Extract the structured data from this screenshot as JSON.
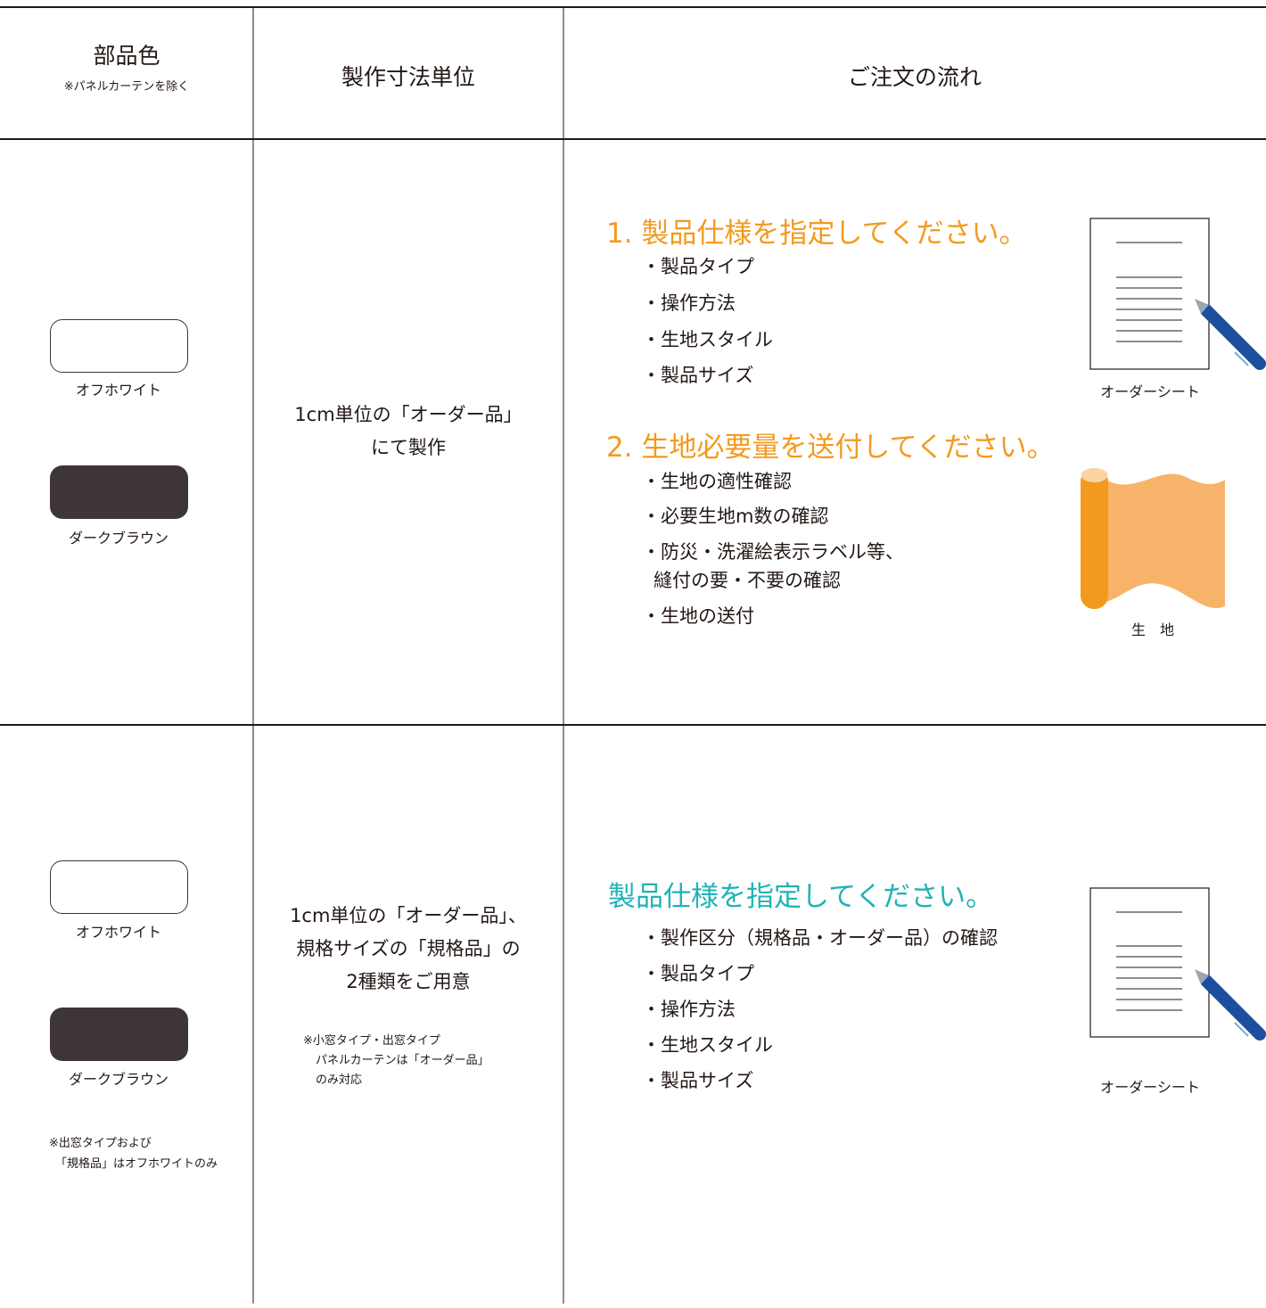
{
  "header": {
    "color_title": "部品色",
    "color_note": "※パネルカーテンを除く",
    "unit": "製作寸法単位",
    "flow": "ご注文の流れ"
  },
  "rows": [
    {
      "colors": [
        "オフホワイト",
        "ダークブラウン"
      ],
      "unit": [
        "1cm単位の「オーダー品」",
        "にて製作"
      ],
      "steps": [
        {
          "title": "1. 製品仕様を指定してください。",
          "items": [
            "・製品タイプ",
            "・操作方法",
            "・生地スタイル",
            "・製品サイズ"
          ],
          "icon_label": "オーダーシート"
        },
        {
          "title": "2. 生地必要量を送付してください。",
          "items": [
            "・生地の適性確認",
            "・必要生地m数の確認",
            "・防災・洗濯絵表示ラベル等、",
            "縫付の要・不要の確認",
            "・生地の送付"
          ],
          "icon_label": "生　地"
        }
      ]
    },
    {
      "colors": [
        "オフホワイト",
        "ダークブラウン"
      ],
      "color_note": [
        "※出窓タイプおよび",
        "「規格品」はオフホワイトのみ"
      ],
      "unit": [
        "1cm単位の「オーダー品」、",
        "規格サイズの「規格品」の",
        "2種類をご用意"
      ],
      "unit_note": [
        "※小窓タイプ・出窓タイプ",
        "パネルカーテンは「オーダー品」",
        "のみ対応"
      ],
      "steps": [
        {
          "title": "製品仕様を指定してください。",
          "items": [
            "・製作区分（規格品・オーダー品）の確認",
            "・製品タイプ",
            "・操作方法",
            "・生地スタイル",
            "・製品サイズ"
          ],
          "icon_label": "オーダーシート"
        }
      ]
    }
  ]
}
